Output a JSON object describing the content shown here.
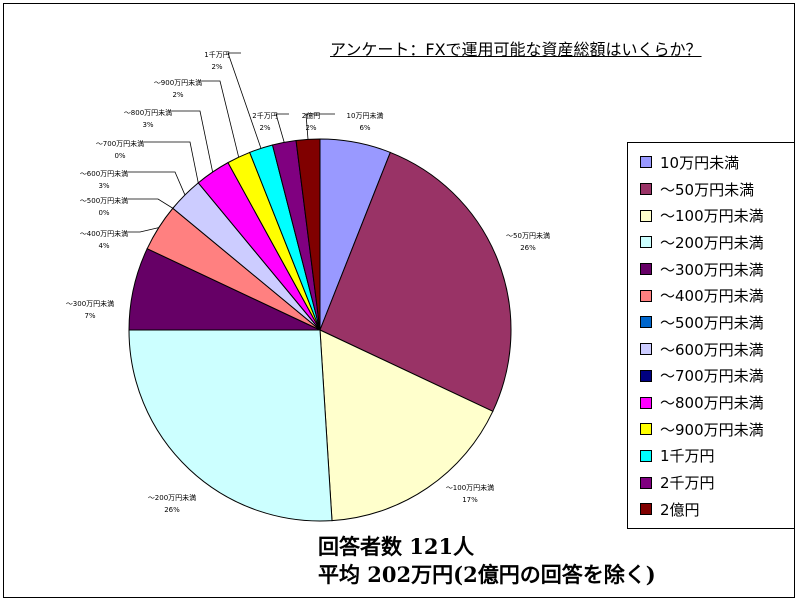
{
  "chart_data": {
    "type": "pie",
    "title": "アンケート：FXで運用可能な資産総額はいくらか？",
    "series": [
      {
        "name": "10万円未満",
        "value": 6,
        "label_name": "10万円未満",
        "label_pct": "6%",
        "color": "#9999FF"
      },
      {
        "name": "～50万円未満",
        "value": 26,
        "label_name": "～50万円未満",
        "label_pct": "26%",
        "color": "#993366"
      },
      {
        "name": "～100万円未満",
        "value": 17,
        "label_name": "～100万円未満",
        "label_pct": "17%",
        "color": "#FFFFCC"
      },
      {
        "name": "～200万円未満",
        "value": 26,
        "label_name": "～200万円未満",
        "label_pct": "26%",
        "color": "#CCFFFF"
      },
      {
        "name": "～300万円未満",
        "value": 7,
        "label_name": "～300万円未満",
        "label_pct": "7%",
        "color": "#660066"
      },
      {
        "name": "～400万円未満",
        "value": 4,
        "label_name": "～400万円未満",
        "label_pct": "4%",
        "color": "#FF8080"
      },
      {
        "name": "～500万円未満",
        "value": 0,
        "label_name": "～500万円未満",
        "label_pct": "0%",
        "color": "#0066CC"
      },
      {
        "name": "～600万円未満",
        "value": 3,
        "label_name": "～600万円未満",
        "label_pct": "3%",
        "color": "#CCCCFF"
      },
      {
        "name": "～700万円未満",
        "value": 0,
        "label_name": "～700万円未満",
        "label_pct": "0%",
        "color": "#000080"
      },
      {
        "name": "～800万円未満",
        "value": 3,
        "label_name": "～800万円未満",
        "label_pct": "3%",
        "color": "#FF00FF"
      },
      {
        "name": "～900万円未満",
        "value": 2,
        "label_name": "～900万円未満",
        "label_pct": "2%",
        "color": "#FFFF00"
      },
      {
        "name": "1千万円",
        "value": 2,
        "label_name": "1千万円",
        "label_pct": "2%",
        "color": "#00FFFF"
      },
      {
        "name": "2千万円",
        "value": 2,
        "label_name": "2千万円",
        "label_pct": "2%",
        "color": "#800080"
      },
      {
        "name": "2億円",
        "value": 2,
        "label_name": "2億円",
        "label_pct": "2%",
        "color": "#800000"
      }
    ],
    "legend_position": "right"
  },
  "footer": {
    "respondents": "回答者数 121人",
    "average": "平均 202万円(2億円の回答を除く)"
  }
}
